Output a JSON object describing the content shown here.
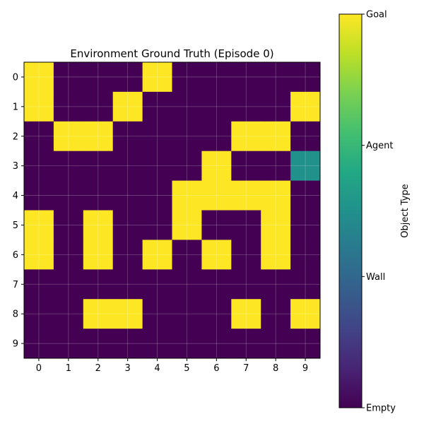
{
  "chart_data": {
    "type": "heatmap",
    "title": "Environment Ground Truth (Episode 0)",
    "x_ticks": [
      "0",
      "1",
      "2",
      "3",
      "4",
      "5",
      "6",
      "7",
      "8",
      "9"
    ],
    "y_ticks": [
      "0",
      "1",
      "2",
      "3",
      "4",
      "5",
      "6",
      "7",
      "8",
      "9"
    ],
    "grid": true,
    "colormap": "viridis",
    "value_range": [
      0,
      3
    ],
    "grid_values": [
      [
        3,
        0,
        0,
        0,
        3,
        0,
        0,
        0,
        0,
        0
      ],
      [
        3,
        0,
        0,
        3,
        0,
        0,
        0,
        0,
        0,
        3
      ],
      [
        0,
        3,
        3,
        0,
        0,
        0,
        0,
        3,
        3,
        0
      ],
      [
        0,
        0,
        0,
        0,
        0,
        0,
        3,
        0,
        0,
        2
      ],
      [
        0,
        0,
        0,
        0,
        0,
        3,
        3,
        3,
        3,
        0
      ],
      [
        3,
        0,
        3,
        0,
        0,
        3,
        0,
        0,
        3,
        0
      ],
      [
        3,
        0,
        3,
        0,
        3,
        0,
        3,
        0,
        3,
        0
      ],
      [
        0,
        0,
        0,
        0,
        0,
        0,
        0,
        0,
        0,
        0
      ],
      [
        0,
        0,
        3,
        3,
        0,
        0,
        0,
        3,
        0,
        3
      ],
      [
        0,
        0,
        0,
        0,
        0,
        0,
        0,
        0,
        0,
        0
      ]
    ],
    "colors": {
      "0": "#440154",
      "1": "#31688e",
      "2": "#21918c",
      "3": "#fde725"
    },
    "colorbar": {
      "label": "Object Type",
      "ticks": [
        {
          "value": 0,
          "label": "Empty"
        },
        {
          "value": 1,
          "label": "Wall"
        },
        {
          "value": 2,
          "label": "Agent"
        },
        {
          "value": 3,
          "label": "Goal"
        }
      ]
    }
  }
}
